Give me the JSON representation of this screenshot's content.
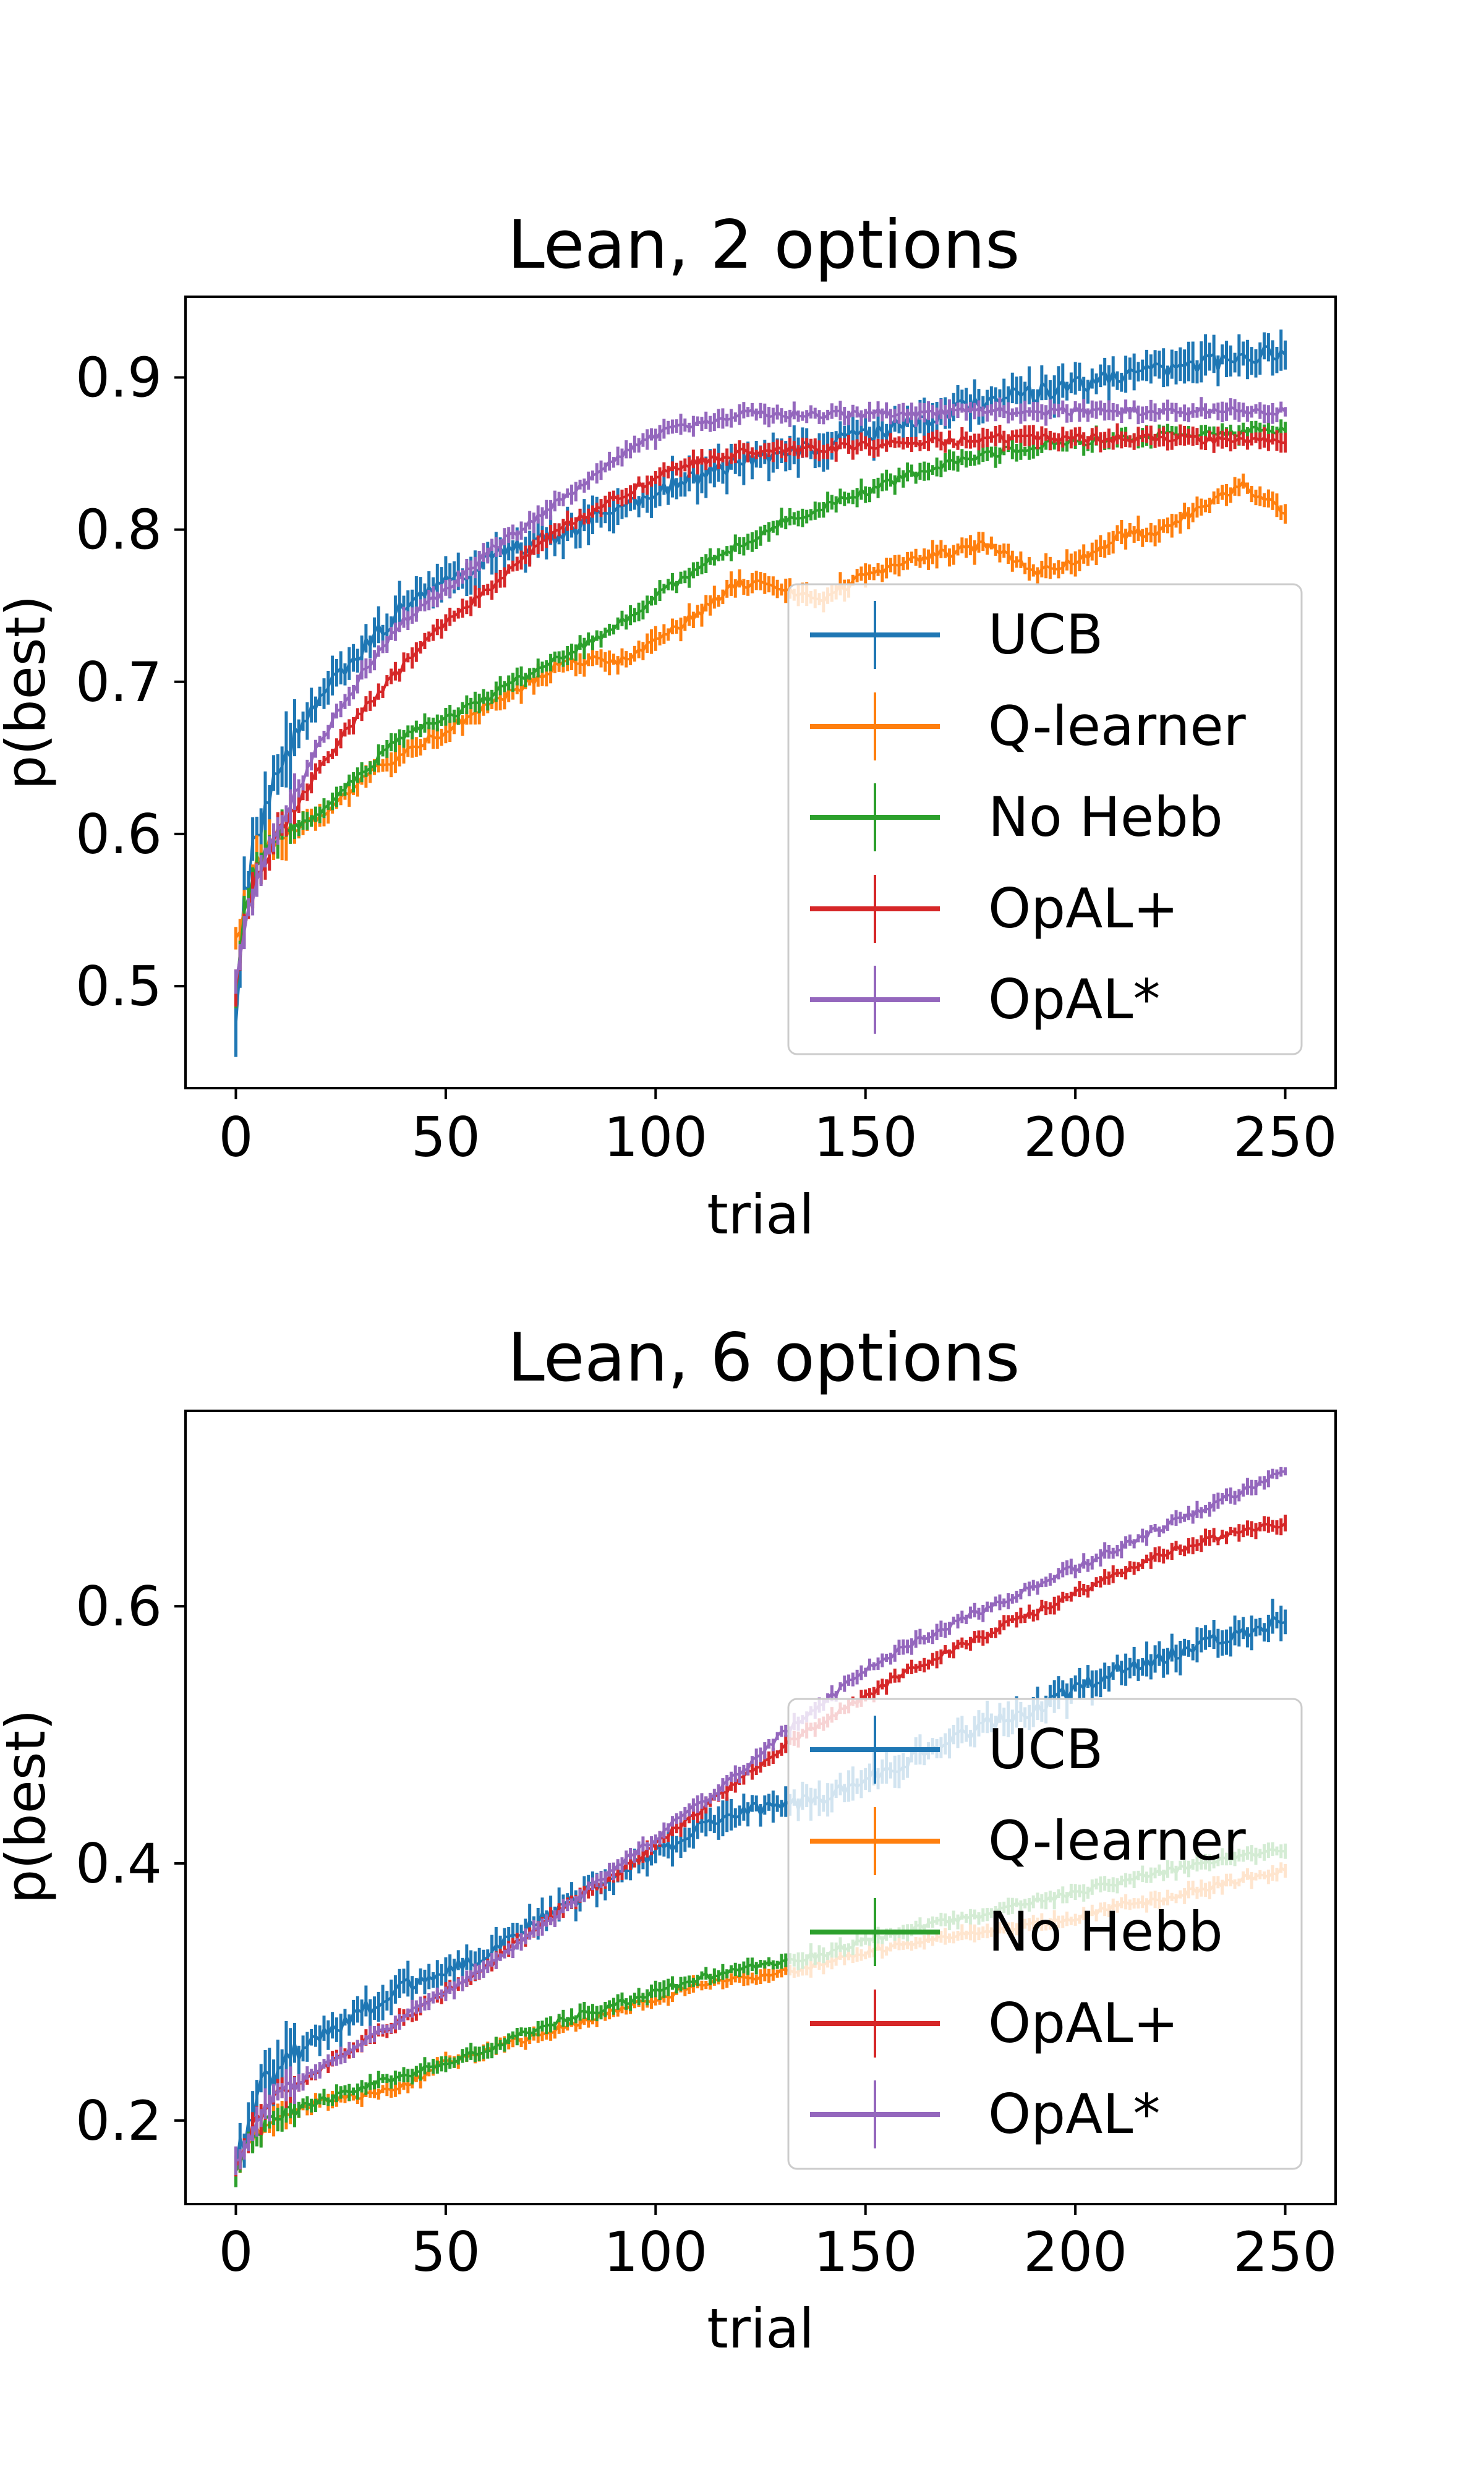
{
  "chart_data": [
    {
      "type": "line",
      "title": "Lean, 2 options",
      "xlabel": "trial",
      "ylabel": "p(best)",
      "xlim": [
        -12,
        262
      ],
      "ylim": [
        0.433,
        0.953
      ],
      "xticks": [
        0,
        50,
        100,
        150,
        200,
        250
      ],
      "yticks": [
        0.5,
        0.6,
        0.7,
        0.8,
        0.9
      ],
      "ytick_labels": [
        "0.5",
        "0.6",
        "0.7",
        "0.8",
        "0.9"
      ],
      "error_bars": true,
      "legend": {
        "placement": "lower-right",
        "entries": [
          "UCB",
          "Q-learner",
          "No Hebb",
          "OpAL+",
          "OpAL*"
        ]
      },
      "series": [
        {
          "name": "UCB",
          "color": "#1f77b4",
          "noise": 0.01,
          "x": [
            0,
            2,
            5,
            10,
            15,
            20,
            30,
            40,
            50,
            60,
            70,
            80,
            100,
            120,
            140,
            160,
            180,
            200,
            220,
            240,
            250
          ],
          "y": [
            0.48,
            0.56,
            0.6,
            0.64,
            0.67,
            0.69,
            0.72,
            0.75,
            0.765,
            0.78,
            0.79,
            0.8,
            0.825,
            0.845,
            0.855,
            0.87,
            0.885,
            0.895,
            0.905,
            0.912,
            0.918
          ]
        },
        {
          "name": "Q-learner",
          "color": "#ff7f0e",
          "noise": 0.006,
          "x": [
            0,
            2,
            5,
            10,
            15,
            20,
            30,
            40,
            50,
            60,
            70,
            80,
            90,
            100,
            110,
            120,
            130,
            140,
            150,
            160,
            170,
            180,
            190,
            200,
            210,
            220,
            230,
            240,
            250
          ],
          "y": [
            0.53,
            0.55,
            0.58,
            0.6,
            0.605,
            0.61,
            0.635,
            0.655,
            0.668,
            0.685,
            0.7,
            0.715,
            0.712,
            0.725,
            0.745,
            0.765,
            0.762,
            0.755,
            0.77,
            0.78,
            0.785,
            0.79,
            0.772,
            0.78,
            0.795,
            0.8,
            0.815,
            0.83,
            0.812
          ]
        },
        {
          "name": "No Hebb",
          "color": "#2ca02c",
          "noise": 0.005,
          "x": [
            0,
            2,
            5,
            10,
            15,
            20,
            30,
            40,
            50,
            60,
            70,
            80,
            90,
            100,
            110,
            120,
            130,
            140,
            150,
            160,
            170,
            180,
            190,
            200,
            220,
            250
          ],
          "y": [
            0.5,
            0.55,
            0.58,
            0.6,
            0.605,
            0.615,
            0.64,
            0.665,
            0.675,
            0.69,
            0.705,
            0.72,
            0.735,
            0.755,
            0.775,
            0.79,
            0.805,
            0.815,
            0.825,
            0.835,
            0.843,
            0.85,
            0.855,
            0.858,
            0.862,
            0.866
          ]
        },
        {
          "name": "OpAL+",
          "color": "#d62728",
          "noise": 0.005,
          "x": [
            0,
            2,
            5,
            10,
            15,
            20,
            30,
            40,
            50,
            60,
            70,
            80,
            90,
            100,
            110,
            120,
            130,
            140,
            150,
            160,
            170,
            180,
            200,
            220,
            250
          ],
          "y": [
            0.5,
            0.54,
            0.57,
            0.6,
            0.62,
            0.645,
            0.68,
            0.71,
            0.74,
            0.76,
            0.785,
            0.805,
            0.82,
            0.835,
            0.845,
            0.85,
            0.852,
            0.853,
            0.855,
            0.857,
            0.858,
            0.86,
            0.86,
            0.86,
            0.858
          ]
        },
        {
          "name": "OpAL*",
          "color": "#9467bd",
          "noise": 0.005,
          "x": [
            0,
            2,
            5,
            10,
            15,
            20,
            30,
            40,
            50,
            60,
            70,
            80,
            90,
            100,
            110,
            120,
            130,
            140,
            150,
            160,
            170,
            180,
            200,
            220,
            250
          ],
          "y": [
            0.5,
            0.54,
            0.57,
            0.6,
            0.63,
            0.66,
            0.705,
            0.74,
            0.76,
            0.785,
            0.805,
            0.825,
            0.845,
            0.862,
            0.87,
            0.876,
            0.876,
            0.875,
            0.876,
            0.877,
            0.877,
            0.878,
            0.878,
            0.878,
            0.878
          ]
        }
      ]
    },
    {
      "type": "line",
      "title": "Lean, 6 options",
      "xlabel": "trial",
      "ylabel": "p(best)",
      "xlim": [
        -12,
        262
      ],
      "ylim": [
        0.135,
        0.752
      ],
      "xticks": [
        0,
        50,
        100,
        150,
        200,
        250
      ],
      "yticks": [
        0.2,
        0.4,
        0.6
      ],
      "ytick_labels": [
        "0.2",
        "0.4",
        "0.6"
      ],
      "error_bars": true,
      "legend": {
        "placement": "lower-right",
        "entries": [
          "UCB",
          "Q-learner",
          "No Hebb",
          "OpAL+",
          "OpAL*"
        ]
      },
      "series": [
        {
          "name": "UCB",
          "color": "#1f77b4",
          "noise": 0.01,
          "x": [
            0,
            5,
            10,
            20,
            30,
            40,
            50,
            60,
            70,
            80,
            90,
            100,
            110,
            120,
            130,
            140,
            150,
            160,
            170,
            180,
            190,
            200,
            210,
            220,
            230,
            240,
            250
          ],
          "y": [
            0.165,
            0.22,
            0.24,
            0.265,
            0.285,
            0.305,
            0.315,
            0.33,
            0.35,
            0.37,
            0.39,
            0.41,
            0.425,
            0.44,
            0.445,
            0.45,
            0.465,
            0.48,
            0.495,
            0.51,
            0.52,
            0.535,
            0.55,
            0.56,
            0.57,
            0.58,
            0.59
          ]
        },
        {
          "name": "Q-learner",
          "color": "#ff7f0e",
          "noise": 0.005,
          "x": [
            0,
            5,
            10,
            20,
            30,
            40,
            50,
            60,
            70,
            80,
            90,
            100,
            110,
            120,
            130,
            140,
            150,
            160,
            170,
            180,
            190,
            200,
            210,
            220,
            230,
            240,
            250
          ],
          "y": [
            0.165,
            0.19,
            0.205,
            0.215,
            0.22,
            0.228,
            0.245,
            0.255,
            0.265,
            0.275,
            0.285,
            0.295,
            0.305,
            0.31,
            0.315,
            0.322,
            0.33,
            0.338,
            0.343,
            0.347,
            0.352,
            0.358,
            0.366,
            0.372,
            0.38,
            0.388,
            0.395
          ]
        },
        {
          "name": "No Hebb",
          "color": "#2ca02c",
          "noise": 0.005,
          "x": [
            0,
            5,
            10,
            20,
            30,
            40,
            50,
            60,
            70,
            80,
            90,
            100,
            110,
            120,
            130,
            140,
            150,
            160,
            170,
            180,
            190,
            200,
            210,
            220,
            230,
            240,
            250
          ],
          "y": [
            0.165,
            0.19,
            0.205,
            0.215,
            0.225,
            0.235,
            0.245,
            0.255,
            0.27,
            0.28,
            0.29,
            0.3,
            0.31,
            0.318,
            0.323,
            0.33,
            0.34,
            0.348,
            0.355,
            0.362,
            0.37,
            0.378,
            0.385,
            0.392,
            0.4,
            0.405,
            0.41
          ]
        },
        {
          "name": "OpAL+",
          "color": "#d62728",
          "noise": 0.005,
          "x": [
            0,
            5,
            10,
            20,
            30,
            40,
            50,
            60,
            70,
            80,
            90,
            100,
            110,
            120,
            130,
            140,
            150,
            160,
            170,
            180,
            190,
            200,
            210,
            220,
            230,
            240,
            250
          ],
          "y": [
            0.165,
            0.2,
            0.22,
            0.24,
            0.26,
            0.28,
            0.3,
            0.32,
            0.345,
            0.37,
            0.39,
            0.415,
            0.44,
            0.465,
            0.49,
            0.51,
            0.53,
            0.55,
            0.565,
            0.58,
            0.595,
            0.61,
            0.625,
            0.64,
            0.65,
            0.658,
            0.665
          ]
        },
        {
          "name": "OpAL*",
          "color": "#9467bd",
          "noise": 0.005,
          "x": [
            0,
            5,
            10,
            20,
            30,
            40,
            50,
            60,
            70,
            80,
            90,
            100,
            110,
            120,
            130,
            140,
            150,
            160,
            170,
            180,
            190,
            200,
            210,
            220,
            230,
            240,
            250
          ],
          "y": [
            0.165,
            0.2,
            0.22,
            0.24,
            0.26,
            0.28,
            0.3,
            0.32,
            0.345,
            0.37,
            0.395,
            0.42,
            0.445,
            0.47,
            0.5,
            0.525,
            0.55,
            0.57,
            0.585,
            0.6,
            0.615,
            0.63,
            0.645,
            0.66,
            0.675,
            0.69,
            0.705
          ]
        }
      ]
    }
  ]
}
